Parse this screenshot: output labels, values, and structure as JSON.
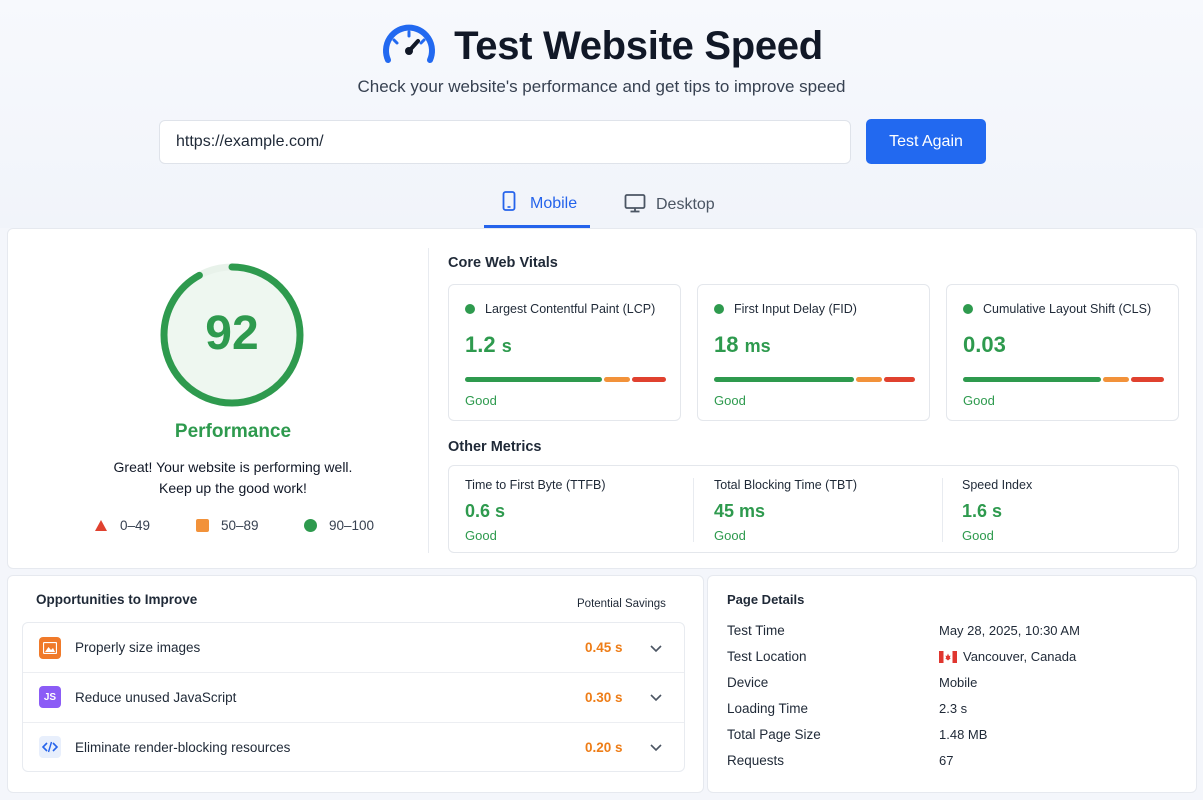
{
  "header": {
    "title": "Test Website Speed",
    "subtitle": "Check your website's performance and get tips to improve speed",
    "url_value": "https://example.com/",
    "test_button": "Test Again",
    "tabs": [
      {
        "label": "Mobile",
        "active": true
      },
      {
        "label": "Desktop",
        "active": false
      }
    ]
  },
  "performance": {
    "score": "92",
    "score_fraction": 0.92,
    "label": "Performance",
    "message_line1": "Great! Your website is performing well.",
    "message_line2": "Keep up the good work!",
    "legend": [
      {
        "label": "0–49",
        "shape": "triangle",
        "color": "#e0412f"
      },
      {
        "label": "50–89",
        "shape": "square",
        "color": "#f2923a"
      },
      {
        "label": "90–100",
        "shape": "circle",
        "color": "#2e9a4e"
      }
    ]
  },
  "core_web_vitals": {
    "title": "Core Web Vitals",
    "items": [
      {
        "name": "Largest Contentful Paint (LCP)",
        "value": "1.2",
        "unit": "s",
        "status": "Good"
      },
      {
        "name": "First Input Delay (FID)",
        "value": "18",
        "unit": "ms",
        "status": "Good"
      },
      {
        "name": "Cumulative Layout Shift (CLS)",
        "value": "0.03",
        "unit": "",
        "status": "Good"
      }
    ]
  },
  "other_metrics": {
    "title": "Other Metrics",
    "items": [
      {
        "name": "Time to First Byte (TTFB)",
        "value": "0.6 s",
        "status": "Good"
      },
      {
        "name": "Total Blocking Time (TBT)",
        "value": "45 ms",
        "status": "Good"
      },
      {
        "name": "Speed Index",
        "value": "1.6 s",
        "status": "Good"
      }
    ]
  },
  "opportunities": {
    "title": "Opportunities to Improve",
    "savings_header": "Potential Savings",
    "items": [
      {
        "label": "Properly size images",
        "saving": "0.45 s",
        "icon": "image-icon"
      },
      {
        "label": "Reduce unused JavaScript",
        "saving": "0.30 s",
        "icon": "js-icon",
        "icon_text": "JS"
      },
      {
        "label": "Eliminate render-blocking resources",
        "saving": "0.20 s",
        "icon": "code-icon"
      }
    ]
  },
  "page_details": {
    "title": "Page Details",
    "rows": [
      {
        "key": "Test Time",
        "value": "May 28, 2025, 10:30 AM"
      },
      {
        "key": "Test Location",
        "value": "Vancouver, Canada",
        "icon": "canada-flag-icon"
      },
      {
        "key": "Device",
        "value": "Mobile"
      },
      {
        "key": "Loading Time",
        "value": "2.3 s"
      },
      {
        "key": "Total Page Size",
        "value": "1.48 MB"
      },
      {
        "key": "Requests",
        "value": "67"
      }
    ]
  },
  "colors": {
    "accent": "#2269f0",
    "good": "#2e9a4e",
    "warn": "#f2923a",
    "bad": "#e0412f",
    "saving": "#ee7d17"
  }
}
